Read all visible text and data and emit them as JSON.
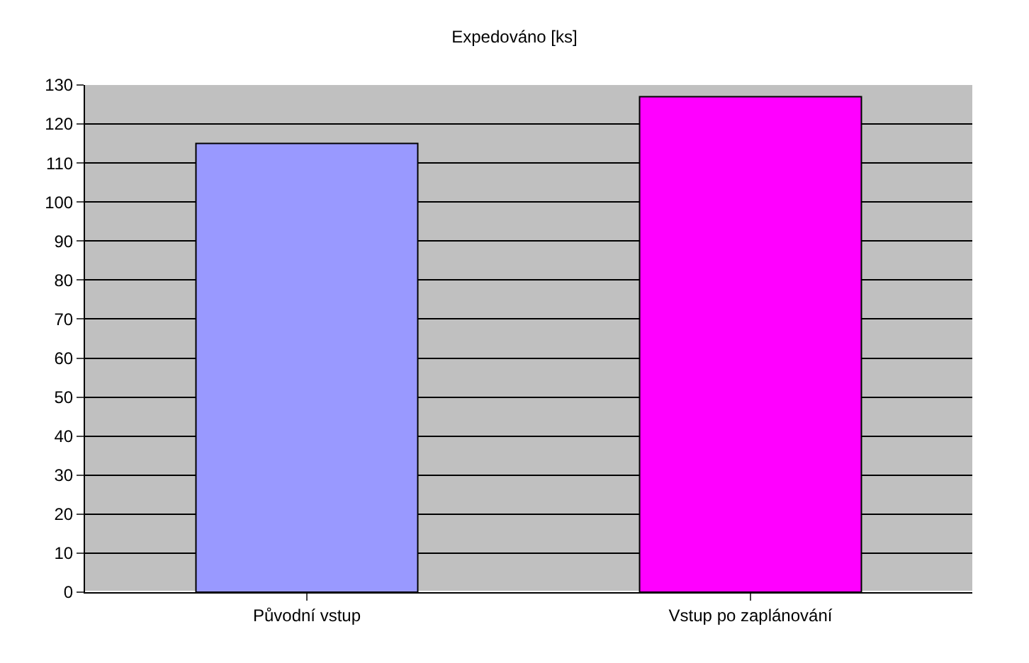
{
  "chart_data": {
    "type": "bar",
    "title": "Expedováno [ks]",
    "categories": [
      "Původní vstup",
      "Vstup po zaplánování"
    ],
    "values": [
      115,
      127
    ],
    "colors": [
      "#9999ff",
      "#ff00ff"
    ],
    "ylim": [
      0,
      130
    ],
    "yticks": [
      0,
      10,
      20,
      30,
      40,
      50,
      60,
      70,
      80,
      90,
      100,
      110,
      120,
      130
    ],
    "grid": "y"
  }
}
